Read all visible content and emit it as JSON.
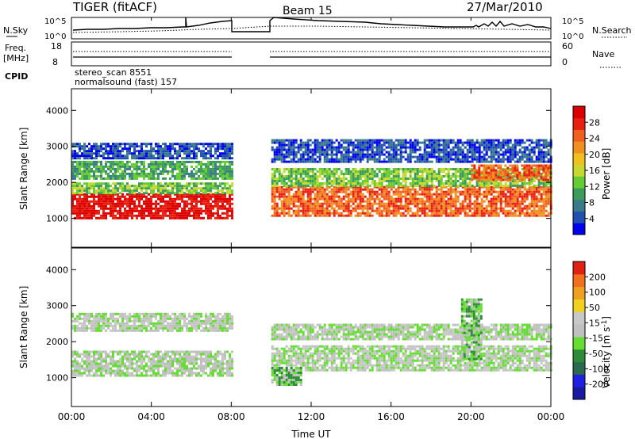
{
  "header": {
    "station": "TIGER (fitACF)",
    "beam": "Beam 15",
    "date": "27/Mar/2010"
  },
  "nsky_panel": {
    "left_label": "N.Sky",
    "left_ticks": [
      "10^5",
      "10^0"
    ],
    "right_ticks": [
      "10^5",
      "10^0"
    ],
    "right_label": "N.Search"
  },
  "freq_panel": {
    "left_label_line1": "Freq.",
    "left_label_line2": "[MHz]",
    "left_ticks": [
      "18",
      "8"
    ],
    "right_ticks": [
      "60",
      "0"
    ],
    "right_label": "Nave"
  },
  "cpid_panel": {
    "label": "CPID",
    "line1": "stereo_scan 8551",
    "line2": "normalsound (fast) 157"
  },
  "colors": {
    "power": [
      "#0000ee",
      "#2050b0",
      "#3a7a8a",
      "#3c9c5c",
      "#66cc33",
      "#c8d830",
      "#f0c020",
      "#f09020",
      "#f06020",
      "#e82010",
      "#dd0000"
    ],
    "velocity": [
      "#1a1aa0",
      "#2020e0",
      "#2c6a50",
      "#2e8b3a",
      "#66dd33",
      "#c0c0c0",
      "#c8c8c8",
      "#f0d020",
      "#f0a020",
      "#f07020",
      "#e02010"
    ]
  },
  "chart_data": [
    {
      "type": "heatmap",
      "name": "power",
      "ylabel": "Slant Range [km]",
      "yticks": [
        "1000",
        "2000",
        "3000",
        "4000"
      ],
      "yrange": [
        200,
        4600
      ],
      "cbar_label": "Power [dB]",
      "cbar_ticks": [
        "28",
        "24",
        "20",
        "16",
        "12",
        "8",
        "4"
      ],
      "bands": [
        {
          "t0": 0.0,
          "t1": 8.0,
          "r_lo": 1000,
          "r_hi": 1700,
          "level": 10
        },
        {
          "t0": 0.0,
          "t1": 8.0,
          "r_lo": 1700,
          "r_hi": 2000,
          "level": 4
        },
        {
          "t0": 0.0,
          "t1": 8.0,
          "r_lo": 2100,
          "r_hi": 2600,
          "level": 3
        },
        {
          "t0": 0.0,
          "t1": 8.0,
          "r_lo": 2700,
          "r_hi": 3100,
          "level": 1
        },
        {
          "t0": 10.0,
          "t1": 24.0,
          "r_lo": 1100,
          "r_hi": 1900,
          "level": 8
        },
        {
          "t0": 10.0,
          "t1": 24.0,
          "r_lo": 1900,
          "r_hi": 2400,
          "level": 4
        },
        {
          "t0": 10.0,
          "t1": 24.0,
          "r_lo": 2600,
          "r_hi": 3200,
          "level": 1
        },
        {
          "t0": 20.0,
          "t1": 24.0,
          "r_lo": 2100,
          "r_hi": 2500,
          "level": 8
        }
      ]
    },
    {
      "type": "heatmap",
      "name": "velocity",
      "ylabel": "Slant Range [km]",
      "yticks": [
        "1000",
        "2000",
        "3000",
        "4000"
      ],
      "yrange": [
        200,
        4600
      ],
      "xticks": [
        "00:00",
        "04:00",
        "08:00",
        "12:00",
        "16:00",
        "20:00",
        "00:00"
      ],
      "xlabel": "Time UT",
      "xrange": [
        0,
        24
      ],
      "cbar_label": "Velocity [m s^-1]",
      "cbar_ticks": [
        "200",
        "100",
        "50",
        "15",
        "-15",
        "-50",
        "-100",
        "-200"
      ],
      "bands": [
        {
          "t0": 0.0,
          "t1": 8.0,
          "r_lo": 1050,
          "r_hi": 1750,
          "level": 5
        },
        {
          "t0": 0.0,
          "t1": 8.0,
          "r_lo": 2300,
          "r_hi": 2800,
          "level": 5
        },
        {
          "t0": 10.0,
          "t1": 24.0,
          "r_lo": 1200,
          "r_hi": 1900,
          "level": 5
        },
        {
          "t0": 10.0,
          "t1": 24.0,
          "r_lo": 2100,
          "r_hi": 2500,
          "level": 5
        },
        {
          "t0": 10.0,
          "t1": 11.5,
          "r_lo": 800,
          "r_hi": 1300,
          "level": 4
        },
        {
          "t0": 19.5,
          "t1": 20.5,
          "r_lo": 1500,
          "r_hi": 3200,
          "level": 4
        }
      ]
    }
  ]
}
